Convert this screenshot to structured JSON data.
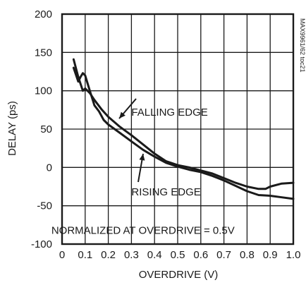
{
  "chart_data": {
    "type": "line",
    "xlabel": "OVERDRIVE (V)",
    "ylabel": "DELAY (ps)",
    "xlim": [
      0,
      1.0
    ],
    "ylim": [
      -100,
      200
    ],
    "xticks": [
      0,
      0.1,
      0.2,
      0.3,
      0.4,
      0.5,
      0.6,
      0.7,
      0.8,
      0.9,
      1.0
    ],
    "xtick_labels": [
      "0",
      "0.1",
      "0.2",
      "0.3",
      "0.4",
      "0.5",
      "0.6",
      "0.7",
      "0.8",
      "0.9",
      "1.0"
    ],
    "yticks": [
      -100,
      -50,
      0,
      50,
      100,
      150,
      200
    ],
    "ytick_labels": [
      "-100",
      "-50",
      "0",
      "50",
      "100",
      "150",
      "200"
    ],
    "grid": true,
    "series": [
      {
        "name": "FALLING EDGE",
        "x": [
          0.05,
          0.07,
          0.09,
          0.1,
          0.12,
          0.14,
          0.17,
          0.2,
          0.25,
          0.3,
          0.35,
          0.4,
          0.45,
          0.5,
          0.55,
          0.6,
          0.65,
          0.7,
          0.75,
          0.8,
          0.85,
          0.88,
          0.9,
          0.95,
          1.0
        ],
        "y": [
          141,
          118,
          100,
          103,
          97,
          88,
          76,
          66,
          53,
          42,
          30,
          18,
          8,
          3,
          0,
          -4,
          -8,
          -14,
          -20,
          -25,
          -28,
          -28,
          -25,
          -21,
          -20
        ]
      },
      {
        "name": "RISING EDGE",
        "x": [
          0.05,
          0.07,
          0.08,
          0.09,
          0.1,
          0.12,
          0.14,
          0.16,
          0.18,
          0.2,
          0.25,
          0.3,
          0.35,
          0.4,
          0.45,
          0.5,
          0.55,
          0.6,
          0.65,
          0.7,
          0.75,
          0.8,
          0.85,
          0.9,
          0.95,
          1.0
        ],
        "y": [
          130,
          112,
          118,
          123,
          120,
          100,
          81,
          73,
          62,
          56,
          45,
          34,
          23,
          14,
          6,
          1,
          -3,
          -6,
          -11,
          -17,
          -24,
          -31,
          -36,
          -37,
          -39,
          -41
        ]
      }
    ],
    "annotations": [
      {
        "text": "FALLING EDGE",
        "x": 0.3,
        "y": 72
      },
      {
        "text": "RISING EDGE",
        "x": 0.3,
        "y": -32
      },
      {
        "text": "NORMALIZED AT OVERDRIVE = 0.5V",
        "x": 0.35,
        "y": -82
      }
    ],
    "side_label": "MAX9961/62 toc21"
  }
}
